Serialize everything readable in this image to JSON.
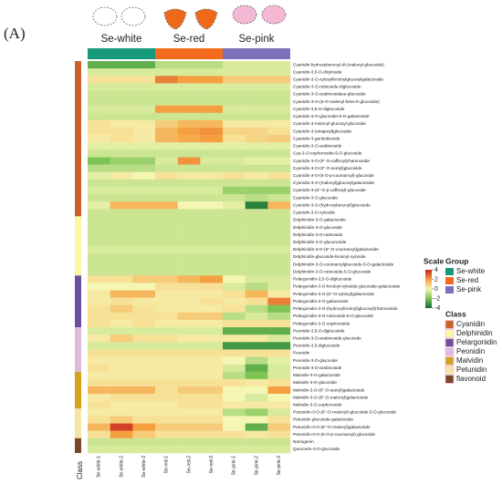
{
  "chart_data": {
    "type": "heatmap",
    "panel_label": "(A)",
    "class_axis_label": "Class",
    "groups": [
      {
        "name": "Se-white",
        "color": "#16987a",
        "columns": [
          "Se-white-1",
          "Se-white-2",
          "Se-white-3"
        ]
      },
      {
        "name": "Se-red",
        "color": "#f26b1d",
        "columns": [
          "Se-red-1",
          "Se-red-2",
          "Se-red-3"
        ]
      },
      {
        "name": "Se-pink",
        "color": "#7c70b8",
        "columns": [
          "Se-pink-1",
          "Se-pink-2",
          "Se-pink-3"
        ]
      }
    ],
    "classes": [
      {
        "name": "Cyanidin",
        "color": "#c9622a",
        "rows": [
          {
            "label": "Cyanidin-hydroxybenzoyl-di-(malonyl-glucoside)",
            "values": [
              -2.5,
              -2.5,
              -2.5,
              -1,
              -1,
              -1,
              -0.5,
              -0.5,
              -0.5
            ]
          },
          {
            "label": "Cyanidin-3,5-O-dixyloside",
            "values": [
              -0.5,
              -0.5,
              -0.5,
              -0.5,
              -0.5,
              -0.5,
              -0.5,
              -0.5,
              -0.5
            ]
          },
          {
            "label": "Cyanidin-3-O-xylosylferuloylglucosylgalactoside",
            "values": [
              0.5,
              0.5,
              0.5,
              2.5,
              2,
              2,
              1,
              1,
              1
            ]
          },
          {
            "label": "Cyanidin-3-O-rutinoside-diglucoside",
            "values": [
              -0.5,
              -0.5,
              -0.5,
              -0.5,
              -0.5,
              -0.5,
              -0.5,
              -0.5,
              -0.5
            ]
          },
          {
            "label": "Cyanidin-3-O-arabinosidase-glucoside",
            "values": [
              -0.7,
              -0.7,
              -0.7,
              -0.7,
              -0.7,
              -0.7,
              -0.7,
              -0.7,
              -0.7
            ]
          },
          {
            "label": "Cyanidin-3-O-(6-O-malonyl-beta-D-glucoside)",
            "values": [
              -0.7,
              -0.7,
              -0.7,
              -0.7,
              -0.7,
              -0.7,
              -0.7,
              -0.7,
              -0.7
            ]
          },
          {
            "label": "Cyanidin-3,5-O-diglucoside",
            "values": [
              -0.5,
              -0.5,
              -0.5,
              2,
              2,
              2,
              -0.5,
              -0.5,
              -0.5
            ]
          },
          {
            "label": "Cyanidin-3-O-glucoside-5-O-galactoside",
            "values": [
              -0.7,
              -0.7,
              -0.7,
              -0.7,
              -0.7,
              -0.7,
              -0.7,
              -0.7,
              -0.7
            ]
          },
          {
            "label": "Cyanidin-3-malonyl-glucosyl-glucoside",
            "values": [
              0.5,
              0.3,
              0.3,
              1,
              1.5,
              1.5,
              0.3,
              0.3,
              0.3
            ]
          },
          {
            "label": "Cyanidin-3-(sinapoyl)glucoside",
            "values": [
              0.5,
              0.5,
              0.3,
              1.5,
              2,
              2.2,
              0.8,
              0.8,
              0.5
            ]
          },
          {
            "label": "Cyanidin-3-gentiobioside",
            "values": [
              0.3,
              0.5,
              0.3,
              1.5,
              1.8,
              2,
              0.5,
              0.8,
              1
            ]
          },
          {
            "label": "Cyanidin-3-O-arabinoside",
            "values": [
              -0.3,
              -0.3,
              -0.3,
              -0.3,
              -0.3,
              -0.3,
              -0.3,
              -0.3,
              -0.3
            ]
          },
          {
            "label": "Cya-3-O-sophoroside-5-O-glucoside",
            "values": [
              -0.7,
              -0.7,
              -0.7,
              -0.7,
              -0.7,
              -0.7,
              -0.7,
              -0.7,
              -0.7
            ]
          },
          {
            "label": "Cyanidin-3-O-(6''-O-caffeoyl)rhamnoside",
            "values": [
              -2,
              -1.5,
              -1.5,
              -0.5,
              2.2,
              -0.5,
              -0.5,
              -0.3,
              -0.3
            ]
          },
          {
            "label": "Cyanidin-3-O-(6''-O-acetyl)glucoside",
            "values": [
              -1,
              -1,
              -1,
              -0.7,
              -0.7,
              -0.7,
              -0.7,
              -0.7,
              -0.7
            ]
          },
          {
            "label": "Cyanidin-3-O-(6-O-p-coumaroyl)-glucoside",
            "values": [
              -0.3,
              0.3,
              0,
              0.5,
              0.3,
              0.3,
              0.5,
              0.3,
              0.5
            ]
          },
          {
            "label": "Cyanidin-3-O-(malonyl)glucosylgalactoside",
            "values": [
              -0.7,
              -0.7,
              -0.7,
              -0.7,
              -0.7,
              -0.7,
              -0.7,
              -0.7,
              -0.7
            ]
          },
          {
            "label": "Cyanidin-3-(6''-O-p-caffeoyl)-glucoside",
            "values": [
              -0.5,
              -0.5,
              -0.5,
              -0.5,
              -0.5,
              -0.5,
              -1.5,
              -1.5,
              -1.5
            ]
          },
          {
            "label": "Cyanidin-3-O-glucoside",
            "values": [
              -0.7,
              -0.7,
              -0.7,
              -0.7,
              -0.7,
              -0.7,
              -0.7,
              -1,
              -0.7
            ]
          },
          {
            "label": "Cyanidin-3-O-(hydroxybenzoyl)glucoside",
            "values": [
              -0.3,
              1.5,
              1.5,
              1.5,
              0,
              0,
              -0.3,
              -3.5,
              1.5
            ]
          },
          {
            "label": "Cyanidin-3-O-xyloside",
            "values": [
              -0.7,
              -0.7,
              -0.7,
              -0.7,
              -0.7,
              -0.7,
              -0.7,
              -0.7,
              -0.7
            ]
          }
        ]
      },
      {
        "name": "Delphinidin",
        "color": "#fbf7a4",
        "rows": [
          {
            "label": "Delphinidin-3-O-galactoside",
            "values": [
              -0.7,
              -0.7,
              -0.7,
              -0.7,
              -0.7,
              -0.7,
              -0.7,
              -0.7,
              -0.7
            ]
          },
          {
            "label": "Delphinidin-3-O-glucoside",
            "values": [
              -0.7,
              -0.7,
              -0.7,
              -0.7,
              -0.7,
              -0.7,
              -0.7,
              -0.7,
              -0.7
            ]
          },
          {
            "label": "Delphinidin-3-O-rutinoside",
            "values": [
              -0.7,
              -0.7,
              -0.7,
              -0.7,
              -0.7,
              -0.7,
              -0.7,
              -0.7,
              -0.7
            ]
          },
          {
            "label": "Delphinidin-3-O-glucuronide",
            "values": [
              -0.7,
              -0.7,
              -0.7,
              -0.7,
              -0.7,
              -0.7,
              -0.7,
              -0.7,
              -0.7
            ]
          },
          {
            "label": "Delphinidin-3-O-(6''-O-coumaroyl)galactoside",
            "values": [
              -0.5,
              -0.5,
              -0.5,
              -0.5,
              -0.5,
              -0.5,
              -0.5,
              -0.5,
              -0.5
            ]
          },
          {
            "label": "Delphinidin-glucoside-feruloyl-xyloside",
            "values": [
              -0.7,
              -0.7,
              -0.7,
              -0.7,
              -0.7,
              -0.7,
              -0.7,
              -0.7,
              -0.7
            ]
          },
          {
            "label": "Delphinidin-3-O-coumaroylglucoside-5-O-galactoside",
            "values": [
              -0.7,
              -0.7,
              -0.7,
              -0.7,
              -0.7,
              -0.7,
              -0.7,
              -0.7,
              -0.7
            ]
          },
          {
            "label": "Delphinidin-3-O-rutinoside-5-O-glucoside",
            "values": [
              -0.7,
              -0.7,
              -0.7,
              -0.7,
              -0.7,
              -0.7,
              -0.7,
              -0.7,
              -0.7
            ]
          }
        ]
      },
      {
        "name": "Pelargonidin",
        "color": "#6a4f9c",
        "rows": [
          {
            "label": "Pelargonidin-3,5-O-diglucoside",
            "values": [
              0.5,
              0.5,
              1,
              1,
              1.5,
              2,
              0,
              -0.5,
              -0.5
            ]
          },
          {
            "label": "Pelargonidin-3-O-feruloyl-xyloside-glucoside-galactoside",
            "values": [
              0,
              0,
              0,
              0.5,
              0.5,
              0.5,
              -0.5,
              -1,
              -0.5
            ]
          },
          {
            "label": "Pelargonidin-3-O-(6''-O-xylosyl)galactoside",
            "values": [
              0.3,
              1.5,
              1.5,
              0.3,
              0.3,
              0.3,
              0.5,
              1.5,
              0.3
            ]
          },
          {
            "label": "Pelargonidin-3-O-galactoside",
            "values": [
              0.3,
              0.5,
              0.3,
              0.3,
              0.3,
              0.5,
              0.3,
              0.5,
              2.5
            ]
          },
          {
            "label": "Pelargonidin-3-O-(hydroxyferuloyl)glucosyl)rhamnoside",
            "values": [
              0.5,
              1,
              0.5,
              0.3,
              0.3,
              0.3,
              0.5,
              -1,
              -2
            ]
          },
          {
            "label": "Pelargonidin-3-O-rutinoside-5-O-glucoside",
            "values": [
              0.5,
              0.5,
              0.5,
              0.5,
              1,
              1,
              -1,
              -0.5,
              -1
            ]
          },
          {
            "label": "Pelargonidin-3-O-sophoroside",
            "values": [
              0.5,
              0.3,
              0.5,
              0.3,
              0.3,
              0.3,
              0.5,
              0.5,
              0.5
            ]
          }
        ]
      },
      {
        "name": "Peonidin",
        "color": "#dcbcdc",
        "rows": [
          {
            "label": "Peonidin-3,5-O-diglucoside",
            "values": [
              -0.5,
              -0.5,
              -0.5,
              -0.5,
              -0.5,
              -0.5,
              -2.5,
              -2.5,
              -2.5
            ]
          },
          {
            "label": "Peonidin-3-O-arabinoside-glucoside",
            "values": [
              0.3,
              1,
              0.5,
              0.5,
              0.3,
              0.3,
              0.3,
              0.3,
              -0.5
            ]
          },
          {
            "label": "Peonidin-3,5-diglucoside",
            "values": [
              -0.5,
              -0.5,
              -0.5,
              -0.5,
              -0.5,
              -0.5,
              -3,
              -3,
              -3
            ]
          },
          {
            "label": "Peonidin",
            "values": [
              0.5,
              0.5,
              0.5,
              0.5,
              0.5,
              0.5,
              0.5,
              0.5,
              0.5
            ]
          },
          {
            "label": "Peonidin-3-O-glucoside",
            "values": [
              0.3,
              0.3,
              0.3,
              0.3,
              0.3,
              0.3,
              0,
              -1,
              -0.3
            ]
          },
          {
            "label": "Peonidin-3-O-arabinoside",
            "values": [
              0.5,
              0.3,
              0.3,
              0.3,
              0.3,
              0.3,
              -0.5,
              -2.5,
              -0.5
            ]
          }
        ]
      },
      {
        "name": "Malvidin",
        "color": "#d4a21e",
        "rows": [
          {
            "label": "Malvidin-3-O-galactoside",
            "values": [
              0.3,
              0.3,
              0.3,
              0.3,
              0.3,
              0.3,
              -1,
              -2,
              -0.5
            ]
          },
          {
            "label": "Malvidin-3-O-glucoside",
            "values": [
              0.5,
              0.5,
              0.5,
              0.5,
              0.5,
              0.5,
              0.5,
              0.3,
              0.5
            ]
          },
          {
            "label": "Malvidin-3-O-(6''-O-acetyl)galactoside",
            "values": [
              1.5,
              1.5,
              1.5,
              0.5,
              1,
              1,
              0,
              0,
              2
            ]
          },
          {
            "label": "Malvidin-3-O-(6''-O-malonyl)galactoside",
            "values": [
              0.3,
              0.5,
              0.5,
              0.5,
              0.5,
              0.5,
              0,
              -0.5,
              0
            ]
          },
          {
            "label": "Malvidin-3-O-sophoroside",
            "values": [
              0.5,
              0.3,
              0.3,
              0.3,
              0.5,
              0.5,
              0.3,
              0.3,
              0.3
            ]
          }
        ]
      },
      {
        "name": "Petunidin",
        "color": "#f3e6a6",
        "rows": [
          {
            "label": "Petunidin-3-O-(6''-O-malonyl)-glucoside-5-O-glucoside",
            "values": [
              0.3,
              0.3,
              0.3,
              0.3,
              0.3,
              0.3,
              -1,
              -1.5,
              -0.5
            ]
          },
          {
            "label": "Petunidin glucoside-galactoside",
            "values": [
              0.5,
              1,
              0.5,
              0.5,
              0.5,
              0.5,
              0,
              0,
              0.5
            ]
          },
          {
            "label": "Petunidin-3-O-(6''-O-malonyl)galactoside",
            "values": [
              1.5,
              3.5,
              2,
              1,
              1,
              1,
              0,
              -2.5,
              1
            ]
          },
          {
            "label": "Petunidin-3-O-(6-O-p-coumaroyl)-glucoside",
            "values": [
              0.5,
              2,
              1,
              0.5,
              0.5,
              0.5,
              0.5,
              0.3,
              0.5
            ]
          }
        ]
      },
      {
        "name": "flavonoid",
        "color": "#7a4626",
        "rows": [
          {
            "label": "Naringenin",
            "values": [
              -0.7,
              -0.7,
              -0.7,
              -0.7,
              -0.7,
              -0.7,
              -0.7,
              -0.7,
              -0.7
            ]
          },
          {
            "label": "Quercetin-3-O-glucoside",
            "values": [
              -0.5,
              -0.5,
              -0.5,
              -0.5,
              -0.5,
              -0.5,
              -0.5,
              -0.5,
              -0.5
            ]
          }
        ]
      }
    ],
    "scale": {
      "title": "Scale",
      "zlim": [
        -4,
        4
      ],
      "ticks": [
        4,
        2,
        0,
        -2,
        -4
      ],
      "colors": [
        "#0f6a34",
        "#7cc454",
        "#f6f6b4",
        "#f5a040",
        "#c8201e"
      ]
    },
    "group_legend_title": "Group",
    "class_legend_title": "Class"
  }
}
